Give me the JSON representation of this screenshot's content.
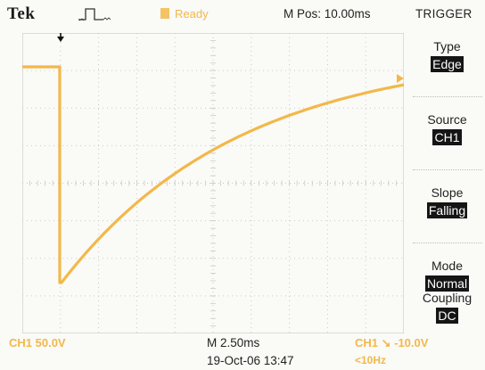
{
  "header": {
    "brand": "Tek",
    "acquisition_icon": "pulse-waveform-icon",
    "status": "Ready",
    "horizontal_position": "M Pos: 10.00ms",
    "menu_title": "TRIGGER"
  },
  "menu": {
    "items": [
      {
        "label": "Type",
        "value": "Edge"
      },
      {
        "label": "Source",
        "value": "CH1"
      },
      {
        "label": "Slope",
        "value": "Falling"
      },
      {
        "label": "Mode",
        "value": "Normal"
      },
      {
        "label": "Coupling",
        "value": "DC"
      }
    ]
  },
  "readouts": {
    "channel_scale": "CH1 50.0V",
    "timebase": "M 2.50ms",
    "datetime": "19-Oct-06 13:47",
    "trigger": "CH1 ↘ -10.0V",
    "trigger_frequency": "<10Hz"
  },
  "graticule": {
    "channel_marker": "1",
    "trigger_position_icon": "trigger-position-arrow-icon",
    "trigger_level_icon": "trigger-level-arrow-icon"
  },
  "colors": {
    "channel1": "#f2b84a",
    "background": "#fafaf7",
    "grid": "#c9c9c9",
    "text": "#222222",
    "highlight_bg": "#151515"
  }
}
